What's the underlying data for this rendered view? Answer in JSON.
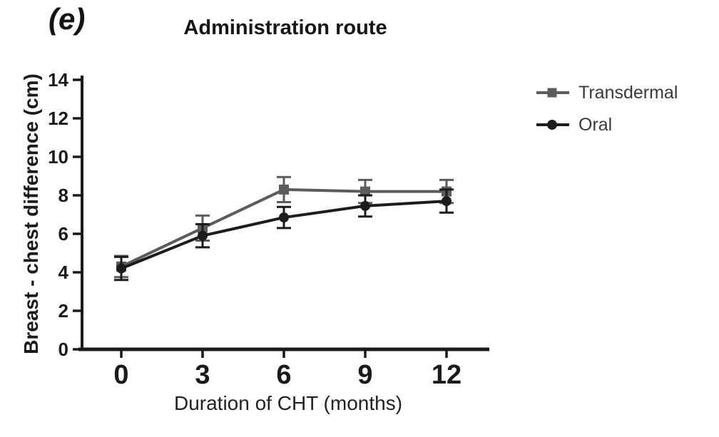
{
  "panel_label": "(e)",
  "colors": {
    "background": "#ffffff",
    "axis": "#1a1a1a",
    "tick_text": "#1a1a1a",
    "legend_text": "#3a3a3a",
    "transdermal": "#5c5c5c",
    "oral": "#1c1c1c"
  },
  "chart_data": {
    "type": "line",
    "title": "Administration route",
    "xlabel": "Duration of CHT (months)",
    "ylabel": "Breast - chest difference (cm)",
    "x": [
      0,
      3,
      6,
      9,
      12
    ],
    "x_tick_labels": [
      "0",
      "3",
      "6",
      "9",
      "12"
    ],
    "y_ticks": [
      0,
      2,
      4,
      6,
      8,
      10,
      12,
      14
    ],
    "y_tick_labels": [
      "0",
      "2",
      "4",
      "6",
      "8",
      "10",
      "12",
      "14"
    ],
    "xlim": [
      -1.5,
      13.5
    ],
    "ylim": [
      0,
      14
    ],
    "grid": false,
    "legend_position": "right",
    "error_bars": true,
    "series": [
      {
        "name": "Transdermal",
        "marker": "square",
        "color": "#5c5c5c",
        "values": [
          4.3,
          6.3,
          8.3,
          8.2,
          8.2
        ],
        "errors": [
          0.55,
          0.65,
          0.65,
          0.6,
          0.6
        ]
      },
      {
        "name": "Oral",
        "marker": "circle",
        "color": "#1c1c1c",
        "values": [
          4.2,
          5.9,
          6.85,
          7.45,
          7.7
        ],
        "errors": [
          0.6,
          0.6,
          0.55,
          0.55,
          0.6
        ]
      }
    ]
  }
}
